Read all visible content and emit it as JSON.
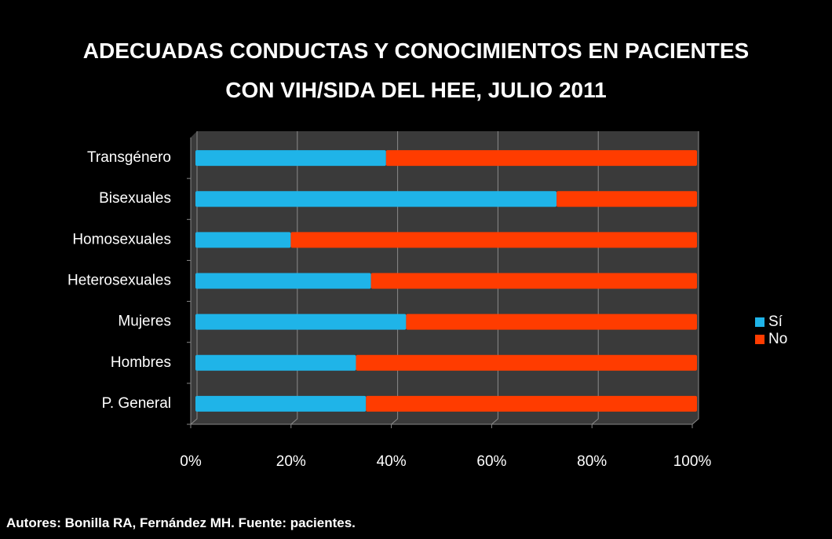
{
  "chart_data": {
    "type": "stacked_bar_horizontal",
    "title": "ADECUADAS CONDUCTAS Y CONOCIMIENTOS EN PACIENTES CON VIH/SIDA DEL HEE, JULIO 2011",
    "categories": [
      "P. General",
      "Hombres",
      "Mujeres",
      "Heterosexuales",
      "Homosexuales",
      "Bisexuales",
      "Transgénero"
    ],
    "series": [
      {
        "name": "Sí",
        "color": "#1fb4e8",
        "values": [
          34,
          32,
          42,
          35,
          19,
          72,
          38
        ]
      },
      {
        "name": "No",
        "color": "#ff3c00",
        "values": [
          66,
          68,
          58,
          65,
          81,
          28,
          62
        ]
      }
    ],
    "xlim": [
      0,
      100
    ],
    "xticks": [
      {
        "value": 0,
        "label": "0%"
      },
      {
        "value": 20,
        "label": "20%"
      },
      {
        "value": 40,
        "label": "40%"
      },
      {
        "value": 60,
        "label": "60%"
      },
      {
        "value": 80,
        "label": "80%"
      },
      {
        "value": 100,
        "label": "100%"
      }
    ],
    "grid": true,
    "legend": "right",
    "footer": "Autores: Bonilla RA, Fernández MH. Fuente: pacientes."
  }
}
